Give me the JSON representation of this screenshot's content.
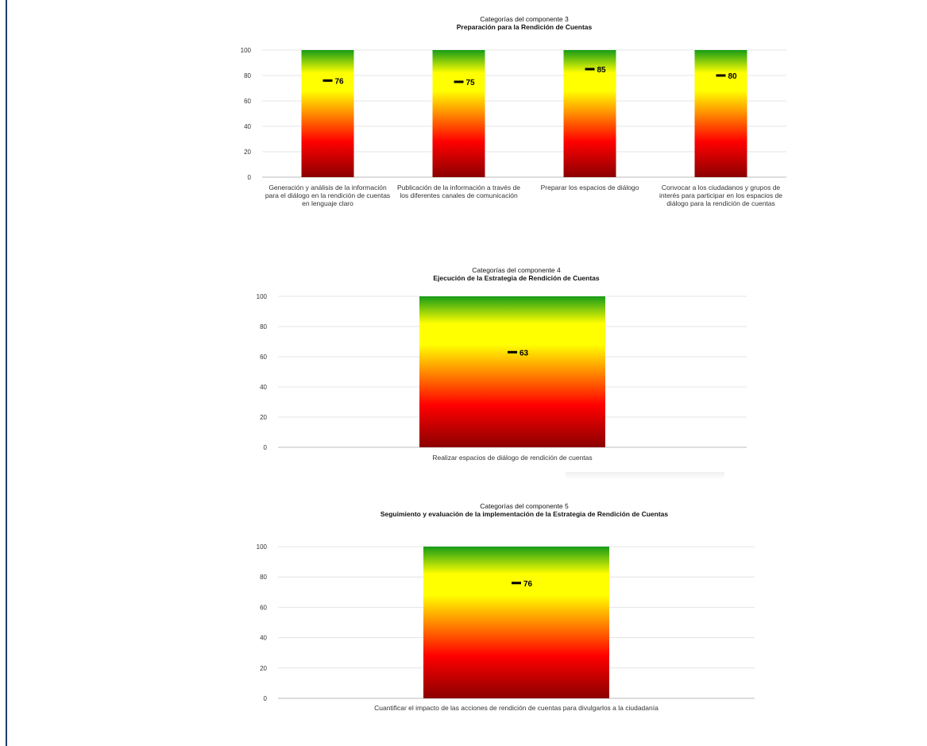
{
  "chart_data": [
    {
      "type": "bar",
      "title": "Categorías del componente 3",
      "subtitle": "Preparación para la Rendición de Cuentas",
      "categories": [
        "Generación y análisis de la información para el diálogo en la rendición de cuentas en lenguaje claro",
        "Publicación de la información a través de los diferentes canales de comunicación",
        "Preparar los espacios de diálogo",
        "Convocar a los ciudadanos y grupos de interés para participar en los espacios de diálogo para la rendición de cuentas"
      ],
      "values": [
        76,
        75,
        85,
        80
      ],
      "bar_max": 100,
      "ylim": [
        0,
        100
      ],
      "yticks": [
        0,
        20,
        40,
        60,
        80,
        100
      ],
      "grid": true,
      "colors": [
        "#8b0000",
        "#ff0000",
        "#ffff00",
        "#169c17"
      ]
    },
    {
      "type": "bar",
      "title": "Categorías del componente 4",
      "subtitle": "Ejecución de la Estrategia de Rendición de Cuentas",
      "categories": [
        "Realizar espacios de diálogo  de rendición de cuentas"
      ],
      "values": [
        63
      ],
      "bar_max": 100,
      "ylim": [
        0,
        100
      ],
      "yticks": [
        0,
        20,
        40,
        60,
        80,
        100
      ],
      "grid": true,
      "colors": [
        "#8b0000",
        "#ff0000",
        "#ffff00",
        "#169c17"
      ]
    },
    {
      "type": "bar",
      "title": "Categorías del componente 5",
      "subtitle": "Seguimiento y evaluación de la implementación de la Estrategia de Rendición de Cuentas",
      "categories": [
        "Cuantificar el impacto de las acciones de rendición de cuentas para divulgarlos a la ciudadanía"
      ],
      "values": [
        76
      ],
      "bar_max": 100,
      "ylim": [
        0,
        100
      ],
      "yticks": [
        0,
        20,
        40,
        60,
        80,
        100
      ],
      "grid": true,
      "colors": [
        "#8b0000",
        "#ff0000",
        "#ffff00",
        "#169c17"
      ]
    }
  ]
}
